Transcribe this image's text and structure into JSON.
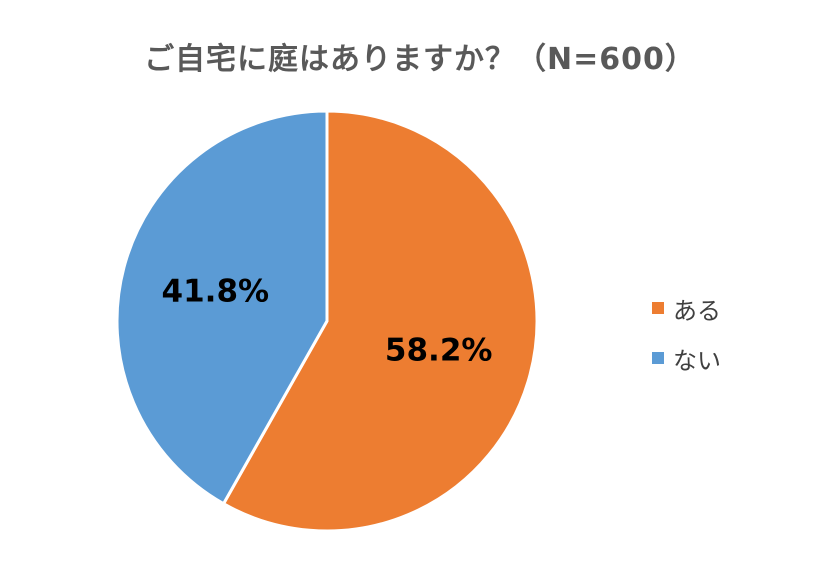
{
  "chart_data": {
    "type": "pie",
    "title": "ご自宅に庭はありますか？（N=600）",
    "slices": [
      {
        "label": "ある",
        "value": 58.2,
        "display": "58.2%",
        "color": "#ED7D31"
      },
      {
        "label": "ない",
        "value": 41.8,
        "display": "41.8%",
        "color": "#5B9BD5"
      }
    ],
    "start": "12 o'clock",
    "direction": "clockwise",
    "legend_position": "right"
  }
}
